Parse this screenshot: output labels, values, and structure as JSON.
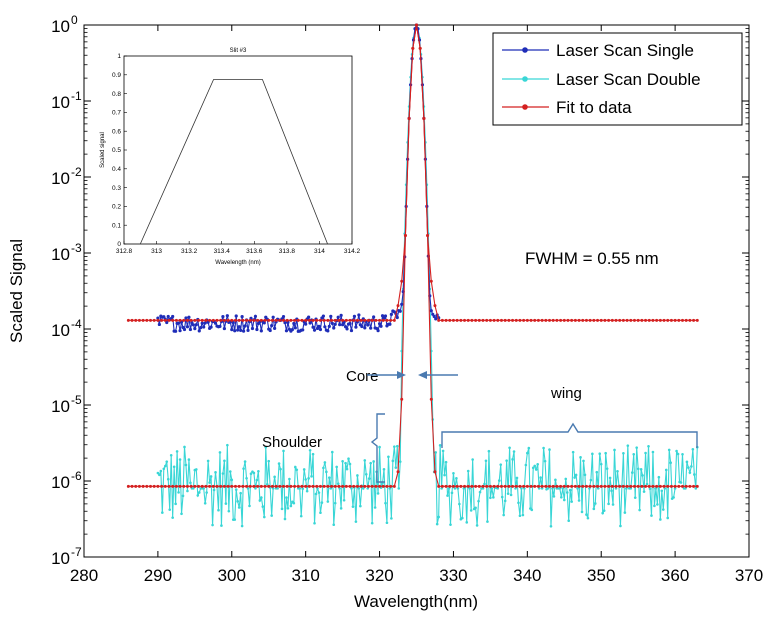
{
  "chart_data": [
    {
      "type": "line",
      "y_scale": "log",
      "xlabel": "Wavelength(nm)",
      "ylabel": "Scaled Signal",
      "xlim": [
        280,
        370
      ],
      "ylim": [
        1e-07,
        1
      ],
      "x_ticks": [
        "280",
        "290",
        "300",
        "310",
        "320",
        "330",
        "340",
        "350",
        "360",
        "370"
      ],
      "y_ticks": [
        {
          "value": 1e-07,
          "exp": "-7"
        },
        {
          "value": 1e-06,
          "exp": "-6"
        },
        {
          "value": 1e-05,
          "exp": "-5"
        },
        {
          "value": 0.0001,
          "exp": "-4"
        },
        {
          "value": 0.001,
          "exp": "-3"
        },
        {
          "value": 0.01,
          "exp": "-2"
        },
        {
          "value": 0.1,
          "exp": "-1"
        },
        {
          "value": 1,
          "exp": "0"
        }
      ],
      "tick_base": "10",
      "legend_position": "top-right",
      "series": [
        {
          "name": "Laser Scan Single",
          "color": "#1f2db8",
          "marker": "dot",
          "x_range": [
            290,
            328
          ],
          "baseline": 0.00012,
          "peak_x": 325,
          "peak_value": 1.0
        },
        {
          "name": "Laser Scan Double",
          "color": "#39d6d6",
          "marker": "dot",
          "x_range": [
            290,
            363
          ],
          "baseline": 8e-07,
          "noise_min": 2.5e-07,
          "noise_max": 3e-06,
          "peak_x": 325,
          "peak_value": 1.0
        },
        {
          "name": "Fit to data",
          "color": "#d42020",
          "marker": "dot",
          "segments": [
            {
              "x_range": [
                286,
                363
              ],
              "baseline": 0.00013
            },
            {
              "x_range": [
                286,
                363
              ],
              "baseline": 8.5e-07
            }
          ],
          "peak_x": 325,
          "peak_value": 1.0
        }
      ],
      "annotations": {
        "fwhm": "FWHM = 0.55 nm",
        "core": "Core",
        "shoulder": "Shoulder",
        "wing": "wing"
      }
    },
    {
      "type": "line",
      "title": "Slit #3",
      "xlabel": "Wavelength (nm)",
      "ylabel": "Scaled signal",
      "xlim": [
        312.8,
        314.2
      ],
      "ylim": [
        0,
        1
      ],
      "x_ticks": [
        "312.8",
        "313",
        "313.2",
        "313.4",
        "313.6",
        "313.8",
        "314",
        "314.2"
      ],
      "y_ticks": [
        "0",
        "0.1",
        "0.2",
        "0.3",
        "0.4",
        "0.5",
        "0.6",
        "0.7",
        "0.8",
        "0.9",
        "1"
      ],
      "series": [
        {
          "x": [
            312.81,
            312.9,
            313.35,
            313.65,
            314.05,
            314.19
          ],
          "y": [
            0,
            0,
            0.875,
            0.875,
            0,
            0
          ],
          "color": "#333333"
        }
      ]
    }
  ]
}
